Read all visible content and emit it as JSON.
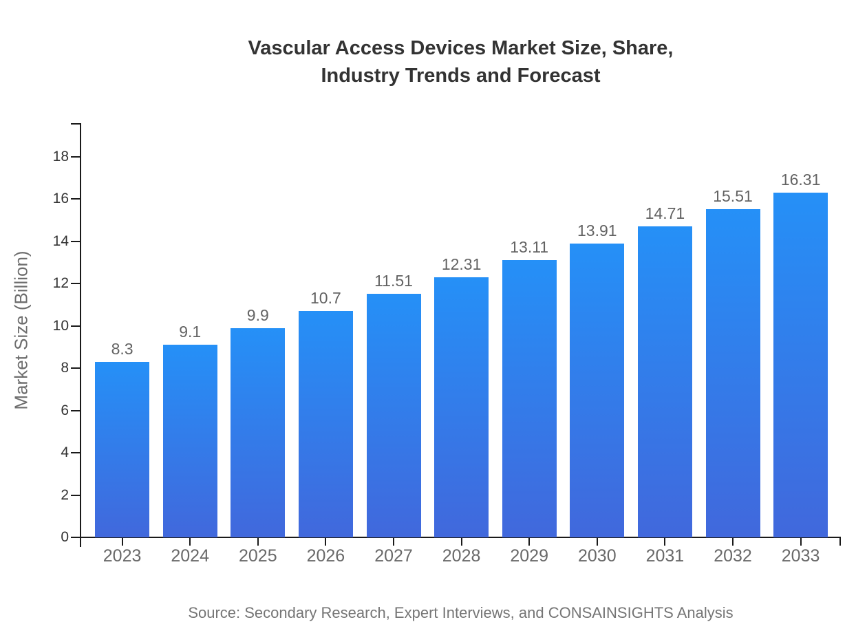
{
  "title": {
    "line1": "Vascular Access Devices Market Size, Share,",
    "line2": "Industry Trends and Forecast"
  },
  "chart_data": {
    "type": "bar",
    "categories": [
      "2023",
      "2024",
      "2025",
      "2026",
      "2027",
      "2028",
      "2029",
      "2030",
      "2031",
      "2032",
      "2033"
    ],
    "values": [
      8.3,
      9.1,
      9.9,
      10.7,
      11.51,
      12.31,
      13.11,
      13.91,
      14.71,
      15.51,
      16.31
    ],
    "value_labels": [
      "8.3",
      "9.1",
      "9.9",
      "10.7",
      "11.51",
      "12.31",
      "13.11",
      "13.91",
      "14.71",
      "15.51",
      "16.31"
    ],
    "title": "Vascular Access Devices Market Size, Share, Industry Trends and Forecast",
    "xlabel": "",
    "ylabel": "Market Size (Billion)",
    "ylim": [
      0,
      18
    ],
    "y_ticks": [
      0,
      2,
      4,
      6,
      8,
      10,
      12,
      14,
      16,
      18
    ],
    "grid": false,
    "legend": "none",
    "bar_gradient_top": "#2590f7",
    "bar_gradient_bottom": "#4168dc"
  },
  "source": "Source: Secondary Research, Expert Interviews, and CONSAINSIGHTS Analysis",
  "colors": {
    "background": "#ffffff",
    "title_text": "#333333",
    "axis_line": "#1a1a1a",
    "y_tick_text": "#333333",
    "x_tick_text": "#696969",
    "value_label_text": "#636363",
    "ylabel_text": "#6e6e6e",
    "source_text": "#757575"
  }
}
